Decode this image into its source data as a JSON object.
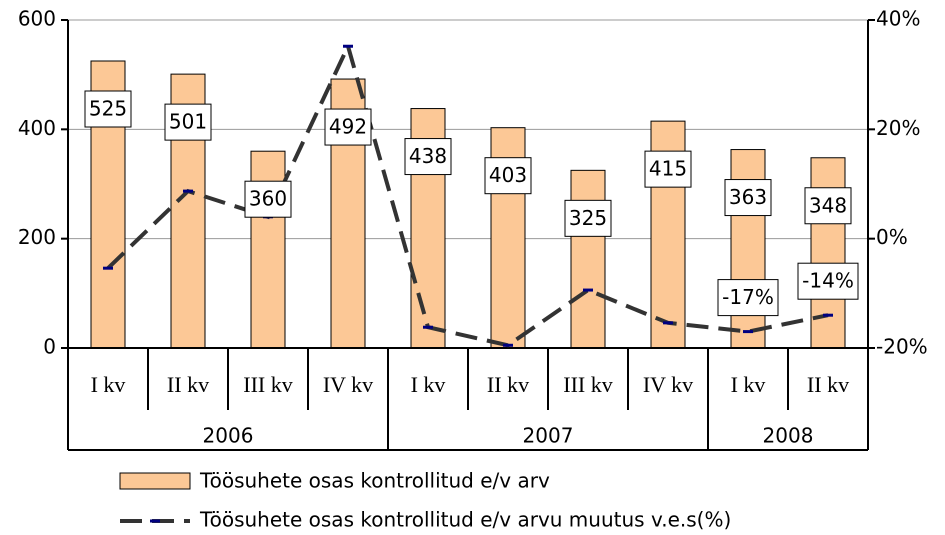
{
  "chart_data": {
    "type": "bar_line",
    "categories": [
      "I kv",
      "II kv",
      "III kv",
      "IV kv",
      "I kv",
      "II kv",
      "III kv",
      "IV kv",
      "I kv",
      "II kv"
    ],
    "groups": [
      {
        "name": "2006",
        "count": 4
      },
      {
        "name": "2007",
        "count": 4
      },
      {
        "name": "2008",
        "count": 2
      }
    ],
    "series": [
      {
        "name": "Töösuhete osas kontrollitud e/v arv",
        "type": "bar",
        "color": "#fcc896",
        "values": [
          525,
          501,
          360,
          492,
          438,
          403,
          325,
          415,
          363,
          348
        ]
      },
      {
        "name": "Töösuhete osas kontrollitud e/v arvu muutus v.e.s(%)",
        "type": "line",
        "axis": "y2",
        "color": "#333333",
        "marker_color": "#000080",
        "values": [
          -5.4,
          8.7,
          4,
          35.2,
          -16.2,
          -19.5,
          -9.4,
          -15.4,
          -17,
          -14
        ],
        "value_labels": [
          null,
          null,
          null,
          null,
          null,
          null,
          null,
          null,
          "-17%",
          "-14%"
        ]
      }
    ],
    "ylim": [
      0,
      600
    ],
    "yticks": [
      0,
      200,
      400,
      600
    ],
    "y2lim": [
      -20,
      40
    ],
    "y2ticks": [
      {
        "value": -20,
        "label": "-20%"
      },
      {
        "value": 0,
        "label": "0%"
      },
      {
        "value": 20,
        "label": "20%"
      },
      {
        "value": 40,
        "label": "40%"
      }
    ],
    "grid": true
  }
}
